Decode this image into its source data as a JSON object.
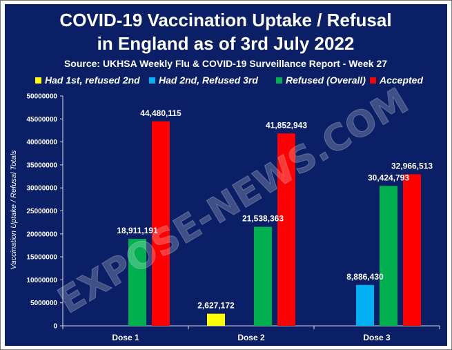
{
  "chart_data": {
    "type": "bar",
    "title_line1": "COVID-19 Vaccination Uptake / Refusal",
    "title_line2": "in England as of 3rd July 2022",
    "subtitle": "Source: UKHSA Weekly Flu & COVID-19 Surveillance Report - Week 27",
    "ylabel": "Vaccination Uptake / Refusal Totals",
    "xlabel": "",
    "ylim": [
      0,
      50000000
    ],
    "y_ticks": [
      "0",
      "5000000",
      "10000000",
      "15000000",
      "20000000",
      "25000000",
      "30000000",
      "35000000",
      "40000000",
      "45000000",
      "50000000"
    ],
    "categories": [
      "Dose 1",
      "Dose 2",
      "Dose 3"
    ],
    "legend_position": "top",
    "grid": false,
    "series": [
      {
        "name": "Had 1st, refused 2nd",
        "color": "#ffff00",
        "values": [
          null,
          2627172,
          null
        ],
        "labels": [
          "",
          "2,627,172",
          ""
        ]
      },
      {
        "name": "Had 2nd, Refused 3rd",
        "color": "#00b0f0",
        "values": [
          null,
          null,
          8886430
        ],
        "labels": [
          "",
          "",
          "8,886,430"
        ]
      },
      {
        "name": "Refused (Overall)",
        "color": "#00b050",
        "values": [
          18911191,
          21538363,
          30424793
        ],
        "labels": [
          "18,911,191",
          "21,538,363",
          "30,424,793"
        ]
      },
      {
        "name": "Accepted",
        "color": "#ff0000",
        "values": [
          44480115,
          41852943,
          32966513
        ],
        "labels": [
          "44,480,115",
          "41,852,943",
          "32,966,513"
        ]
      }
    ],
    "watermark": "EXPOSE-NEWS.COM"
  }
}
